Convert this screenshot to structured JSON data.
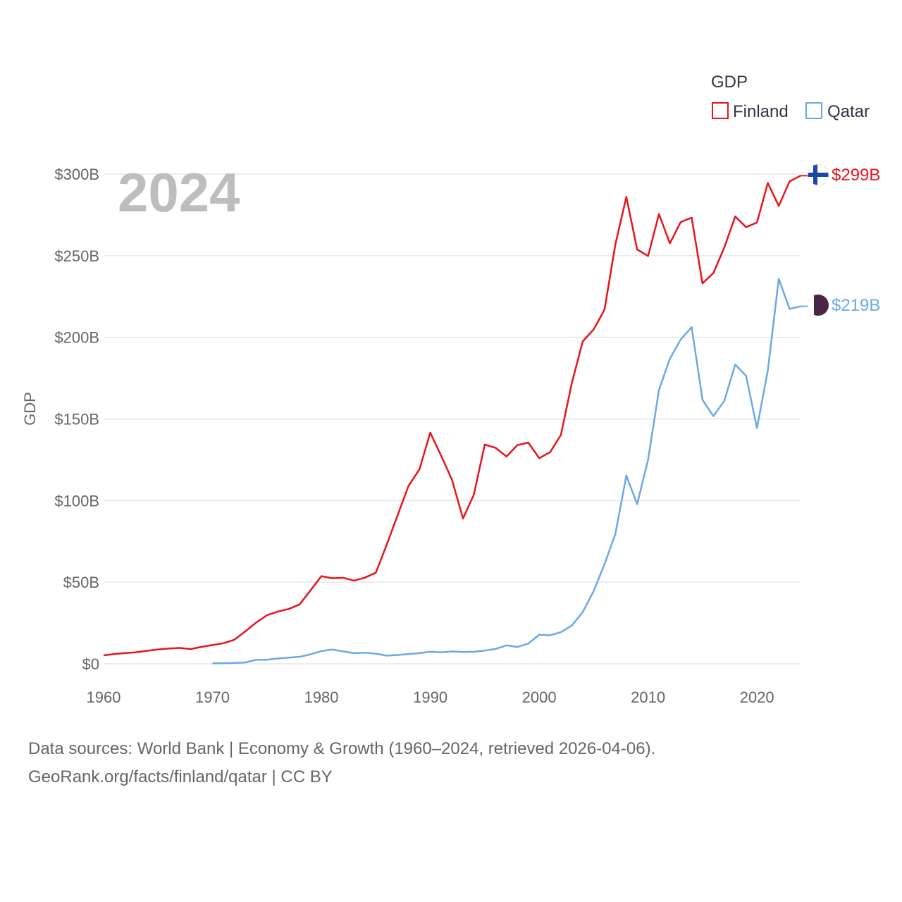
{
  "chart_data": {
    "type": "line",
    "year_label": "2024",
    "ylabel": "GDP",
    "legend": {
      "title": "GDP",
      "position": "top-right"
    },
    "xlim": [
      1960,
      2024
    ],
    "ylim": [
      0,
      300
    ],
    "x_ticks": [
      "1960",
      "1970",
      "1980",
      "1990",
      "2000",
      "2010",
      "2020"
    ],
    "y_ticks": [
      {
        "value": 0,
        "label": "$0"
      },
      {
        "value": 50,
        "label": "$50B"
      },
      {
        "value": 100,
        "label": "$100B"
      },
      {
        "value": 150,
        "label": "$150B"
      },
      {
        "value": 200,
        "label": "$200B"
      },
      {
        "value": 250,
        "label": "$250B"
      },
      {
        "value": 300,
        "label": "$300B"
      }
    ],
    "series": [
      {
        "name": "Finland",
        "color": "#e8141a",
        "end_label": "$299B",
        "flag_icon": "finland-flag-icon",
        "x": [
          1960,
          1961,
          1962,
          1963,
          1964,
          1965,
          1966,
          1967,
          1968,
          1969,
          1970,
          1971,
          1972,
          1973,
          1974,
          1975,
          1976,
          1977,
          1978,
          1979,
          1980,
          1981,
          1982,
          1983,
          1984,
          1985,
          1986,
          1987,
          1988,
          1989,
          1990,
          1991,
          1992,
          1993,
          1994,
          1995,
          1996,
          1997,
          1998,
          1999,
          2000,
          2001,
          2002,
          2003,
          2004,
          2005,
          2006,
          2007,
          2008,
          2009,
          2010,
          2011,
          2012,
          2013,
          2014,
          2015,
          2016,
          2017,
          2018,
          2019,
          2020,
          2021,
          2022,
          2023,
          2024
        ],
        "values": [
          5.2,
          6.0,
          6.6,
          7.1,
          8.0,
          8.8,
          9.4,
          9.7,
          9.0,
          10.4,
          11.5,
          12.6,
          14.7,
          19.8,
          25.2,
          29.8,
          32.0,
          33.6,
          36.4,
          45.0,
          53.7,
          52.4,
          52.7,
          51.0,
          52.8,
          55.8,
          73.0,
          91.0,
          109.0,
          119.0,
          141.6,
          127.5,
          112.6,
          89.0,
          103.6,
          134.3,
          132.3,
          127.0,
          134.0,
          135.5,
          126.0,
          129.6,
          140.3,
          172.0,
          197.5,
          204.8,
          216.9,
          257.0,
          286.0,
          253.8,
          249.8,
          275.5,
          257.6,
          270.6,
          273.3,
          233.0,
          239.4,
          255.0,
          274.0,
          267.5,
          270.3,
          294.5,
          280.5,
          295.5,
          299.0
        ]
      },
      {
        "name": "Qatar",
        "color": "#6aa9e6",
        "end_label": "$219B",
        "flag_icon": "qatar-flag-icon",
        "x": [
          1970,
          1971,
          1972,
          1973,
          1974,
          1975,
          1976,
          1977,
          1978,
          1979,
          1980,
          1981,
          1982,
          1983,
          1984,
          1985,
          1986,
          1987,
          1988,
          1989,
          1990,
          1991,
          1992,
          1993,
          1994,
          1995,
          1996,
          1997,
          1998,
          1999,
          2000,
          2001,
          2002,
          2003,
          2004,
          2005,
          2006,
          2007,
          2008,
          2009,
          2010,
          2011,
          2012,
          2013,
          2014,
          2015,
          2016,
          2017,
          2018,
          2019,
          2020,
          2021,
          2022,
          2023,
          2024
        ],
        "values": [
          0.3,
          0.4,
          0.5,
          0.8,
          2.4,
          2.5,
          3.3,
          3.8,
          4.3,
          5.8,
          7.8,
          8.7,
          7.6,
          6.5,
          6.8,
          6.2,
          5.0,
          5.4,
          6.0,
          6.5,
          7.4,
          7.0,
          7.6,
          7.2,
          7.4,
          8.1,
          9.1,
          11.3,
          10.3,
          12.4,
          17.8,
          17.5,
          19.4,
          23.5,
          31.7,
          44.5,
          60.9,
          79.7,
          115.3,
          97.8,
          125.1,
          167.8,
          186.8,
          198.7,
          206.2,
          161.7,
          151.7,
          161.1,
          183.3,
          176.4,
          144.4,
          179.7,
          235.8,
          217.4,
          219.0
        ]
      }
    ]
  },
  "footer": {
    "line1": "Data sources: World Bank | Economy & Growth (1960–2024, retrieved 2026-04-06).",
    "line2": "GeoRank.org/facts/finland/qatar | CC BY"
  }
}
